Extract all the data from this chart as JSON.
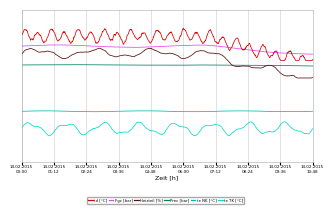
{
  "xlabel": "Zeit [h]",
  "x_tick_labels": [
    "14.02.2015\n00:00",
    "14.02.2015\n01:12",
    "14.02.2015\n02:24",
    "14.02.2015\n03:36",
    "14.02.2015\n04:48",
    "14.02.2015\n06:00",
    "14.02.2015\n07:12",
    "14.02.2015\n08:24",
    "14.02.2015\n09:36",
    "14.02.2015\n10:48"
  ],
  "legend_labels": [
    "td [°C]",
    "Fgc [bar]",
    "Heizteil [%]",
    "Prec [bar]",
    "te NK [°C]",
    "te TK [°C]"
  ],
  "legend_colors": [
    "#dd0000",
    "#ee44ee",
    "#5a1010",
    "#008060",
    "#00bbbb",
    "#00ddcc"
  ],
  "background_color": "#ffffff",
  "grid_color": "#cccccc",
  "n_points": 1100,
  "ylim": [
    -1.5,
    9.0
  ]
}
